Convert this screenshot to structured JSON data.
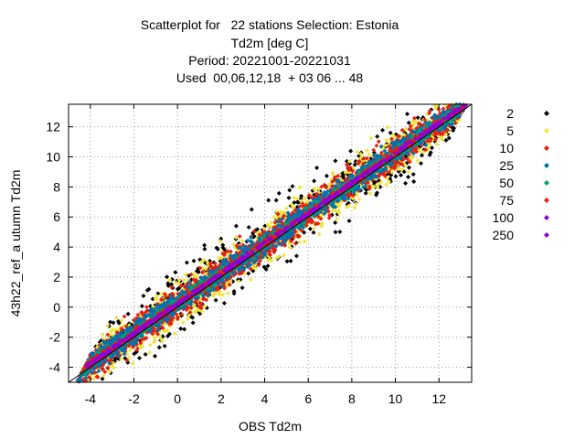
{
  "chart_data": {
    "type": "scatter",
    "title_lines": [
      "Scatterplot for   22 stations Selection: Estonia",
      "Td2m [deg C]",
      "Period: 20221001-20221031",
      "Used  00,06,12,18  + 03 06 ... 48"
    ],
    "xlabel": "OBS Td2m",
    "ylabel": "43h22_ref_a utumn Td2m",
    "xlim": [
      -5,
      13.5
    ],
    "ylim": [
      -5,
      13.5
    ],
    "xticks": [
      -4,
      -2,
      0,
      2,
      4,
      6,
      8,
      10,
      12
    ],
    "yticks": [
      -4,
      -2,
      0,
      2,
      4,
      6,
      8,
      10,
      12
    ],
    "grid": true,
    "diagonal": true,
    "legend_position": "right",
    "legend": [
      {
        "label": "2",
        "color": "#000000"
      },
      {
        "label": "5",
        "color": "#f0e442"
      },
      {
        "label": "10",
        "color": "#e51e10"
      },
      {
        "label": "25",
        "color": "#0072b2"
      },
      {
        "label": "50",
        "color": "#009e73"
      },
      {
        "label": "75",
        "color": "#e51e10"
      },
      {
        "label": "100",
        "color": "#9400d3"
      },
      {
        "label": "250",
        "color": "#9400d3"
      }
    ],
    "bands": [
      {
        "count_class": "2",
        "half_width": 3.0
      },
      {
        "count_class": "5",
        "half_width": 2.1
      },
      {
        "count_class": "10",
        "half_width": 1.5
      },
      {
        "count_class": "25",
        "half_width": 1.0
      },
      {
        "count_class": "50",
        "half_width": 0.55
      },
      {
        "count_class": "75",
        "half_width": 0.35
      },
      {
        "count_class": "100",
        "half_width": 0.2
      }
    ]
  }
}
